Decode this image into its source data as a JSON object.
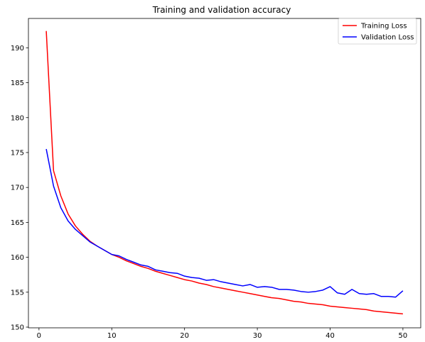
{
  "chart_data": {
    "type": "line",
    "title": "Training and validation accuracy",
    "xlabel": "",
    "ylabel": "",
    "xlim": [
      -1.45,
      52.45
    ],
    "ylim": [
      149.9,
      194.2
    ],
    "xticks": [
      0,
      10,
      20,
      30,
      40,
      50
    ],
    "yticks": [
      150,
      155,
      160,
      165,
      170,
      175,
      180,
      185,
      190
    ],
    "grid": false,
    "legend_position": "top-right",
    "x": [
      1,
      2,
      3,
      4,
      5,
      6,
      7,
      8,
      9,
      10,
      11,
      12,
      13,
      14,
      15,
      16,
      17,
      18,
      19,
      20,
      21,
      22,
      23,
      24,
      25,
      26,
      27,
      28,
      29,
      30,
      31,
      32,
      33,
      34,
      35,
      36,
      37,
      38,
      39,
      40,
      41,
      42,
      43,
      44,
      45,
      46,
      47,
      48,
      49,
      50
    ],
    "series": [
      {
        "name": "Training Loss",
        "color": "#ff0000",
        "values": [
          192.4,
          172.4,
          168.8,
          166.2,
          164.5,
          163.3,
          162.3,
          161.6,
          161.0,
          160.4,
          160.0,
          159.5,
          159.1,
          158.7,
          158.4,
          158.0,
          157.7,
          157.4,
          157.1,
          156.8,
          156.6,
          156.3,
          156.1,
          155.8,
          155.6,
          155.4,
          155.2,
          155.0,
          154.8,
          154.6,
          154.4,
          154.2,
          154.1,
          153.9,
          153.7,
          153.6,
          153.4,
          153.3,
          153.2,
          153.0,
          152.9,
          152.8,
          152.7,
          152.6,
          152.5,
          152.3,
          152.2,
          152.1,
          152.0,
          151.9
        ]
      },
      {
        "name": "Validation Loss",
        "color": "#0000ff",
        "values": [
          175.5,
          170.2,
          167.1,
          165.2,
          164.0,
          163.1,
          162.2,
          161.6,
          161.0,
          160.4,
          160.2,
          159.7,
          159.3,
          158.9,
          158.7,
          158.2,
          158.0,
          157.8,
          157.7,
          157.3,
          157.1,
          157.0,
          156.7,
          156.8,
          156.5,
          156.3,
          156.1,
          155.9,
          156.1,
          155.7,
          155.8,
          155.7,
          155.4,
          155.4,
          155.3,
          155.1,
          155.0,
          155.1,
          155.3,
          155.8,
          154.9,
          154.7,
          155.4,
          154.8,
          154.7,
          154.8,
          154.4,
          154.4,
          154.3,
          155.2
        ]
      }
    ]
  }
}
